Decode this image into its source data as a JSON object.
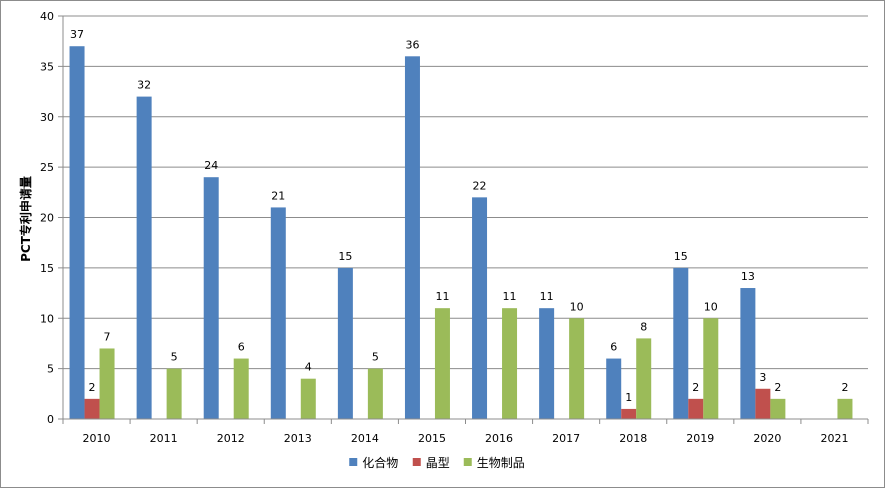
{
  "chart_data": {
    "type": "bar",
    "categories": [
      "2010",
      "2011",
      "2012",
      "2013",
      "2014",
      "2015",
      "2016",
      "2017",
      "2018",
      "2019",
      "2020",
      "2021"
    ],
    "series": [
      {
        "name": "化合物",
        "color": "#4f81bd",
        "values": [
          37,
          32,
          24,
          21,
          15,
          36,
          22,
          11,
          6,
          15,
          13,
          null
        ]
      },
      {
        "name": "晶型",
        "color": "#c0504d",
        "values": [
          2,
          null,
          null,
          null,
          null,
          null,
          null,
          null,
          1,
          2,
          3,
          null
        ]
      },
      {
        "name": "生物制品",
        "color": "#9bbb59",
        "values": [
          7,
          5,
          6,
          4,
          5,
          11,
          11,
          10,
          8,
          10,
          2,
          2
        ]
      }
    ],
    "xlabel": "",
    "ylabel": "PCT专利申请量",
    "ylim": [
      0,
      40
    ],
    "yticks": [
      0,
      5,
      10,
      15,
      20,
      25,
      30,
      35,
      40
    ],
    "grid": true,
    "legend_position": "bottom"
  }
}
